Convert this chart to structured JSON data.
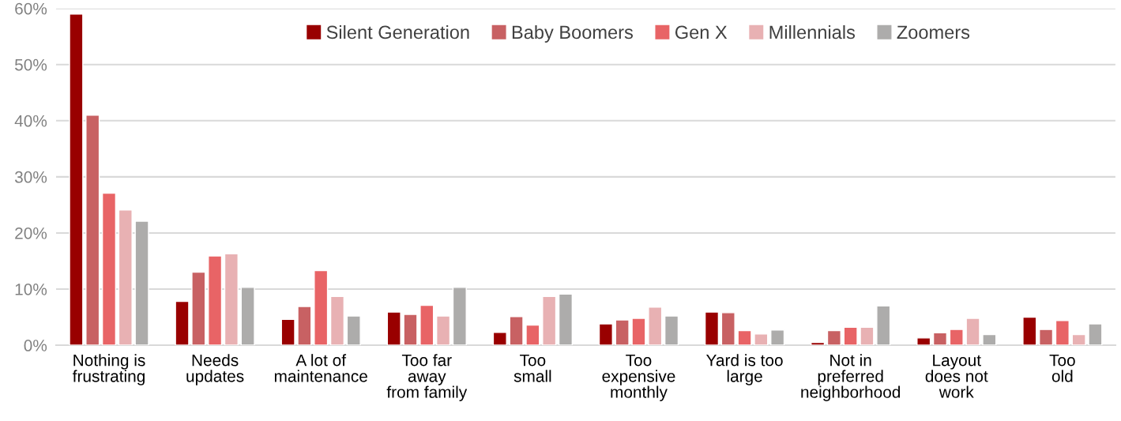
{
  "chart_data": {
    "type": "bar",
    "categories": [
      "Nothing is\nfrustrating",
      "Needs\nupdates",
      "A lot of\nmaintenance",
      "Too far\naway\nfrom family",
      "Too\nsmall",
      "Too\nexpensive\nmonthly",
      "Yard is too\nlarge",
      "Not in\npreferred\nneighborhood",
      "Layout\ndoes not\nwork",
      "Too\nold"
    ],
    "series": [
      {
        "name": "Silent Generation",
        "color": "#990000",
        "values": [
          59,
          7.8,
          4.6,
          5.9,
          2.3,
          3.8,
          5.9,
          0.5,
          1.3,
          5.0
        ]
      },
      {
        "name": "Baby Boomers",
        "color": "#c86163",
        "values": [
          41,
          13.0,
          6.9,
          5.5,
          5.1,
          4.5,
          5.8,
          2.6,
          2.2,
          2.8
        ]
      },
      {
        "name": "Gen X",
        "color": "#e86466",
        "values": [
          27.1,
          15.9,
          13.3,
          7.1,
          3.6,
          4.8,
          2.6,
          3.2,
          2.8,
          4.4
        ]
      },
      {
        "name": "Millennials",
        "color": "#e8b1b3",
        "values": [
          24.1,
          16.3,
          8.7,
          5.2,
          8.7,
          6.8,
          2.0,
          3.2,
          4.8,
          1.9
        ]
      },
      {
        "name": "Zoomers",
        "color": "#adacab",
        "values": [
          22.1,
          10.3,
          5.2,
          10.3,
          9.1,
          5.2,
          2.7,
          7.0,
          1.9,
          3.8
        ]
      }
    ],
    "ylim": [
      0,
      60
    ],
    "yticks": [
      {
        "value": 0,
        "label": "0%"
      },
      {
        "value": 10,
        "label": "10%"
      },
      {
        "value": 20,
        "label": "20%"
      },
      {
        "value": 30,
        "label": "30%"
      },
      {
        "value": 40,
        "label": "40%"
      },
      {
        "value": 50,
        "label": "50%"
      },
      {
        "value": 60,
        "label": "60%"
      }
    ],
    "grid": "y",
    "legend": "top"
  }
}
